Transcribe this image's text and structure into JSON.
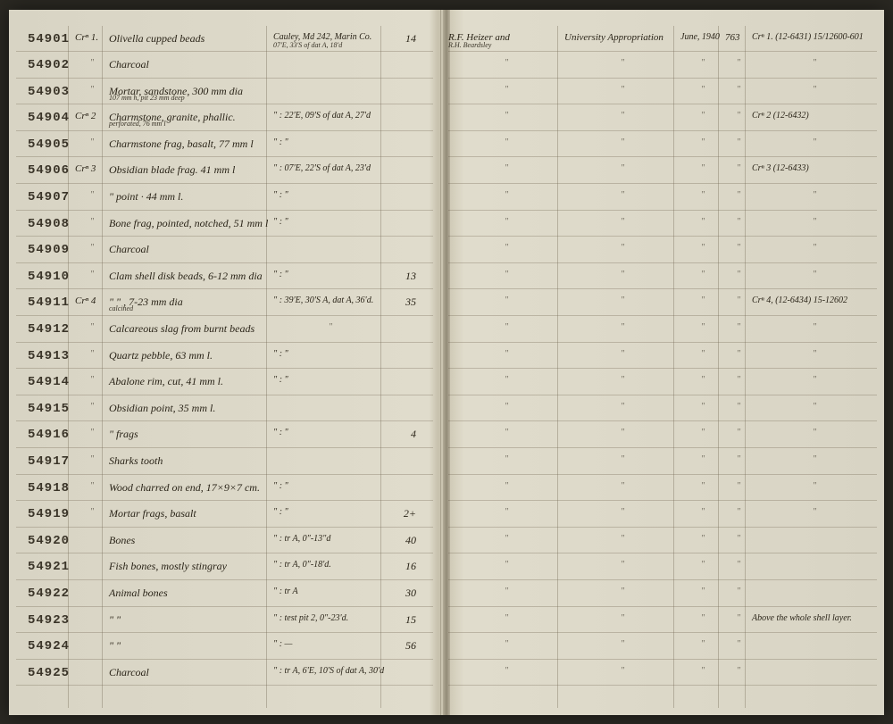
{
  "rows": [
    {
      "num": "54901",
      "crem": "Crⁿ 1.",
      "desc": "Olivella cupped beads",
      "loc": "Cauley, Md 242, Marin Co.",
      "locSub": "07'E, 33'S of dat A, 18'd",
      "qty": "14",
      "coll": "R.F. Heizer and",
      "collSub": "R.H. Beardsley",
      "fund": "University Appropriation",
      "date": "June, 1940",
      "pg": "763",
      "ref": "Crⁿ 1. (12-6431) 15/12600-601"
    },
    {
      "num": "54902",
      "crem": "\"",
      "desc": "Charcoal",
      "loc": "",
      "qty": "",
      "coll": "\"",
      "fund": "\"",
      "date": "\"",
      "pg": "\"",
      "ref": "\""
    },
    {
      "num": "54903",
      "crem": "\"",
      "desc": "Mortar, sandstone, 300 mm dia",
      "descSub": "107 mm h, pit 23 mm deep",
      "loc": "",
      "qty": "",
      "coll": "\"",
      "fund": "\"",
      "date": "\"",
      "pg": "\"",
      "ref": "\""
    },
    {
      "num": "54904",
      "crem": "Crⁿ 2",
      "desc": "Charmstone, granite, phallic.",
      "descSub": "perforated, 76 mm l",
      "loc": "\" : 22'E, 09'S of dat A, 27'd",
      "qty": "",
      "coll": "\"",
      "fund": "\"",
      "date": "\"",
      "pg": "\"",
      "ref": "Crⁿ 2 (12-6432)"
    },
    {
      "num": "54905",
      "crem": "\"",
      "desc": "Charmstone frag, basalt, 77 mm l",
      "loc": "\" : \"",
      "qty": "",
      "coll": "\"",
      "fund": "\"",
      "date": "\"",
      "pg": "\"",
      "ref": "\""
    },
    {
      "num": "54906",
      "crem": "Crⁿ 3",
      "desc": "Obsidian blade frag. 41 mm l",
      "loc": "\" : 07'E, 22'S of dat A, 23'd",
      "qty": "",
      "coll": "\"",
      "fund": "\"",
      "date": "\"",
      "pg": "\"",
      "ref": "Crⁿ 3 (12-6433)"
    },
    {
      "num": "54907",
      "crem": "\"",
      "desc": "\"      point · 44 mm l.",
      "loc": "\" : \"",
      "qty": "",
      "coll": "\"",
      "fund": "\"",
      "date": "\"",
      "pg": "\"",
      "ref": "\""
    },
    {
      "num": "54908",
      "crem": "\"",
      "desc": "Bone frag, pointed, notched, 51 mm l",
      "loc": "\" : \"",
      "qty": "",
      "coll": "\"",
      "fund": "\"",
      "date": "\"",
      "pg": "\"",
      "ref": "\""
    },
    {
      "num": "54909",
      "crem": "\"",
      "desc": "Charcoal",
      "loc": "",
      "qty": "",
      "coll": "\"",
      "fund": "\"",
      "date": "\"",
      "pg": "\"",
      "ref": "\""
    },
    {
      "num": "54910",
      "crem": "\"",
      "desc": "Clam shell disk beads, 6-12 mm dia",
      "loc": "\" : \"",
      "qty": "13",
      "coll": "\"",
      "fund": "\"",
      "date": "\"",
      "pg": "\"",
      "ref": "\""
    },
    {
      "num": "54911",
      "crem": "Crⁿ 4",
      "desc": "\"        \"     , 7-23 mm dia",
      "descSub": "calcined",
      "loc": "\" : 39'E, 30'S A, dat A, 36'd.",
      "qty": "35",
      "coll": "\"",
      "fund": "\"",
      "date": "\"",
      "pg": "\"",
      "ref": "Crⁿ 4, (12-6434) 15-12602"
    },
    {
      "num": "54912",
      "crem": "\"",
      "desc": "Calcareous slag from burnt beads",
      "loc": "\"",
      "qty": "",
      "coll": "\"",
      "fund": "\"",
      "date": "\"",
      "pg": "\"",
      "ref": "\""
    },
    {
      "num": "54913",
      "crem": "\"",
      "desc": "Quartz pebble, 63 mm l.",
      "loc": "\" : \"",
      "qty": "",
      "coll": "\"",
      "fund": "\"",
      "date": "\"",
      "pg": "\"",
      "ref": "\""
    },
    {
      "num": "54914",
      "crem": "\"",
      "desc": "Abalone rim, cut, 41 mm l.",
      "loc": "\" : \"",
      "qty": "",
      "coll": "\"",
      "fund": "\"",
      "date": "\"",
      "pg": "\"",
      "ref": "\""
    },
    {
      "num": "54915",
      "crem": "\"",
      "desc": "Obsidian point, 35 mm l.",
      "loc": "",
      "qty": "",
      "coll": "\"",
      "fund": "\"",
      "date": "\"",
      "pg": "\"",
      "ref": "\""
    },
    {
      "num": "54916",
      "crem": "\"",
      "desc": "\"      frags",
      "loc": "\" : \"",
      "qty": "4",
      "coll": "\"",
      "fund": "\"",
      "date": "\"",
      "pg": "\"",
      "ref": "\""
    },
    {
      "num": "54917",
      "crem": "\"",
      "desc": "Sharks tooth",
      "loc": "",
      "qty": "",
      "coll": "\"",
      "fund": "\"",
      "date": "\"",
      "pg": "\"",
      "ref": "\""
    },
    {
      "num": "54918",
      "crem": "\"",
      "desc": "Wood charred on end, 17×9×7 cm.",
      "loc": "\" : \"",
      "qty": "",
      "coll": "\"",
      "fund": "\"",
      "date": "\"",
      "pg": "\"",
      "ref": "\""
    },
    {
      "num": "54919",
      "crem": "\"",
      "desc": "Mortar frags, basalt",
      "loc": "\" : \"",
      "qty": "2+",
      "coll": "\"",
      "fund": "\"",
      "date": "\"",
      "pg": "\"",
      "ref": "\""
    },
    {
      "num": "54920",
      "crem": "",
      "desc": "Bones",
      "loc": "\" : tr A, 0\"-13\"d",
      "qty": "40",
      "coll": "\"",
      "fund": "\"",
      "date": "\"",
      "pg": "\"",
      "ref": ""
    },
    {
      "num": "54921",
      "crem": "",
      "desc": "Fish bones, mostly stingray",
      "loc": "\" : tr A, 0\"-18'd.",
      "qty": "16",
      "coll": "\"",
      "fund": "\"",
      "date": "\"",
      "pg": "\"",
      "ref": ""
    },
    {
      "num": "54922",
      "crem": "",
      "desc": "Animal bones",
      "loc": "\" : tr A",
      "qty": "30",
      "coll": "\"",
      "fund": "\"",
      "date": "\"",
      "pg": "\"",
      "ref": ""
    },
    {
      "num": "54923",
      "crem": "",
      "desc": "\"      \"",
      "loc": "\" : test pit 2, 0\"-23'd.",
      "qty": "15",
      "coll": "\"",
      "fund": "\"",
      "date": "\"",
      "pg": "\"",
      "ref": "Above the whole shell layer."
    },
    {
      "num": "54924",
      "crem": "",
      "desc": "\"      \"",
      "loc": "\" : —",
      "qty": "56",
      "coll": "\"",
      "fund": "\"",
      "date": "\"",
      "pg": "\"",
      "ref": ""
    },
    {
      "num": "54925",
      "crem": "",
      "desc": "Charcoal",
      "loc": "\" : tr A, 6'E, 10'S of dat A, 30'd",
      "qty": "",
      "coll": "\"",
      "fund": "\"",
      "date": "\"",
      "pg": "\"",
      "ref": ""
    }
  ],
  "leftVlines": [
    66,
    104,
    288,
    416
  ],
  "rightVlines": [
    130,
    260,
    310,
    340
  ]
}
